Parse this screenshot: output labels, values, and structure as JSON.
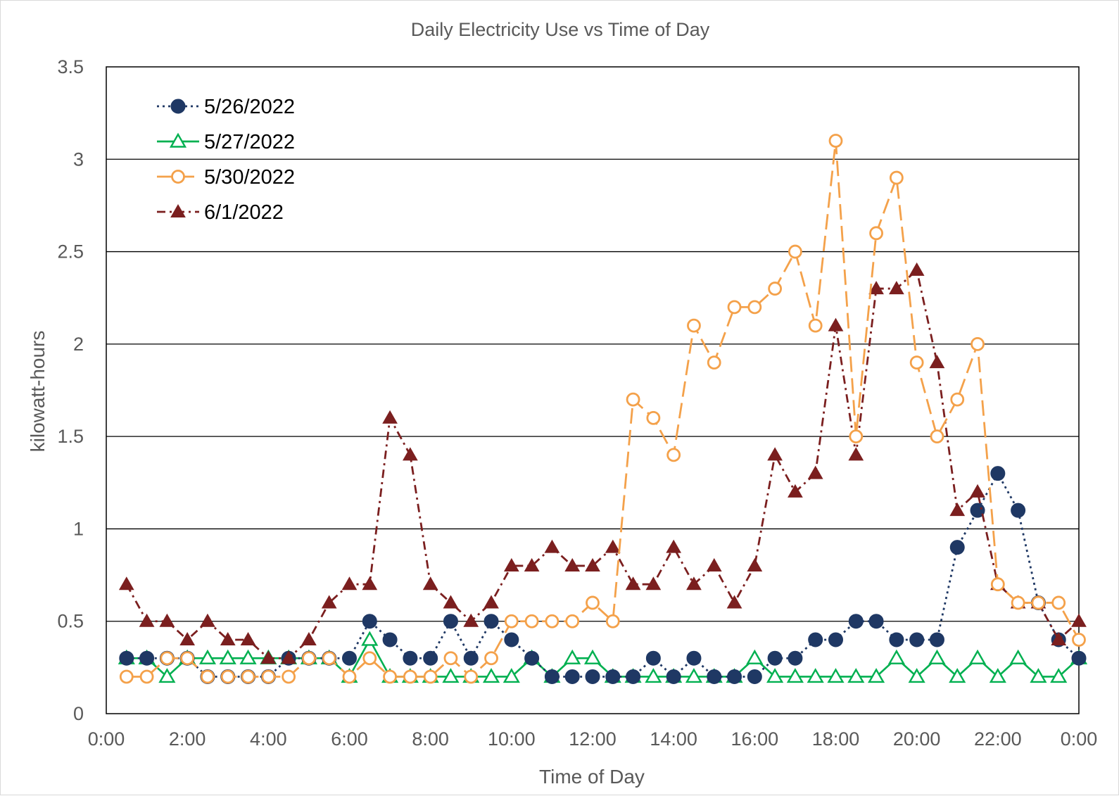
{
  "chart_data": {
    "type": "line",
    "title": "Daily Electricity Use vs Time of Day",
    "xlabel": "Time of Day",
    "ylabel": "kilowatt-hours",
    "xlim": [
      0,
      24
    ],
    "ylim": [
      0,
      3.5
    ],
    "grid": true,
    "legend_position": "top-left",
    "x_ticks": [
      0,
      2,
      4,
      6,
      8,
      10,
      12,
      14,
      16,
      18,
      20,
      22,
      24
    ],
    "x_tick_labels": [
      "0:00",
      "2:00",
      "4:00",
      "6:00",
      "8:00",
      "10:00",
      "12:00",
      "14:00",
      "16:00",
      "18:00",
      "20:00",
      "22:00",
      "0:00"
    ],
    "y_ticks": [
      0,
      0.5,
      1,
      1.5,
      2,
      2.5,
      3,
      3.5
    ],
    "y_tick_labels": [
      "0",
      "0.5",
      "1",
      "1.5",
      "2",
      "2.5",
      "3",
      "3.5"
    ],
    "x": [
      0.5,
      1,
      1.5,
      2,
      2.5,
      3,
      3.5,
      4,
      4.5,
      5,
      5.5,
      6,
      6.5,
      7,
      7.5,
      8,
      8.5,
      9,
      9.5,
      10,
      10.5,
      11,
      11.5,
      12,
      12.5,
      13,
      13.5,
      14,
      14.5,
      15,
      15.5,
      16,
      16.5,
      17,
      17.5,
      18,
      18.5,
      19,
      19.5,
      20,
      20.5,
      21,
      21.5,
      22,
      22.5,
      23,
      23.5,
      24
    ],
    "series": [
      {
        "name": "5/26/2022",
        "color": "#1f3864",
        "marker": "circle-filled",
        "line": "dotted",
        "values": [
          0.3,
          0.3,
          0.3,
          0.3,
          0.2,
          0.2,
          0.2,
          0.2,
          0.3,
          0.3,
          0.3,
          0.3,
          0.5,
          0.4,
          0.3,
          0.3,
          0.5,
          0.3,
          0.5,
          0.4,
          0.3,
          0.2,
          0.2,
          0.2,
          0.2,
          0.2,
          0.3,
          0.2,
          0.3,
          0.2,
          0.2,
          0.2,
          0.3,
          0.3,
          0.4,
          0.4,
          0.5,
          0.5,
          0.4,
          0.4,
          0.4,
          0.9,
          1.1,
          1.3,
          1.1,
          0.6,
          0.4,
          0.3
        ]
      },
      {
        "name": "5/27/2022",
        "color": "#00b050",
        "marker": "triangle-open",
        "line": "solid",
        "values": [
          0.3,
          0.3,
          0.2,
          0.3,
          0.3,
          0.3,
          0.3,
          0.3,
          0.3,
          0.3,
          0.3,
          0.2,
          0.4,
          0.2,
          0.2,
          0.2,
          0.2,
          0.2,
          0.2,
          0.2,
          0.3,
          0.2,
          0.3,
          0.3,
          0.2,
          0.2,
          0.2,
          0.2,
          0.2,
          0.2,
          0.2,
          0.3,
          0.2,
          0.2,
          0.2,
          0.2,
          0.2,
          0.2,
          0.3,
          0.2,
          0.3,
          0.2,
          0.3,
          0.2,
          0.3,
          0.2,
          0.2,
          0.3
        ]
      },
      {
        "name": "5/30/2022",
        "color": "#f4a14a",
        "marker": "circle-open",
        "line": "long-dash",
        "values": [
          0.2,
          0.2,
          0.3,
          0.3,
          0.2,
          0.2,
          0.2,
          0.2,
          0.2,
          0.3,
          0.3,
          0.2,
          0.3,
          0.2,
          0.2,
          0.2,
          0.3,
          0.2,
          0.3,
          0.5,
          0.5,
          0.5,
          0.5,
          0.6,
          0.5,
          1.7,
          1.6,
          1.4,
          2.1,
          1.9,
          2.2,
          2.2,
          2.3,
          2.5,
          2.1,
          3.1,
          1.5,
          2.6,
          2.9,
          1.9,
          1.5,
          1.7,
          2.0,
          0.7,
          0.6,
          0.6,
          0.6,
          0.4
        ]
      },
      {
        "name": "6/1/2022",
        "color": "#7b1f1f",
        "marker": "triangle-filled",
        "line": "dash-dot",
        "values": [
          0.7,
          0.5,
          0.5,
          0.4,
          0.5,
          0.4,
          0.4,
          0.3,
          0.3,
          0.4,
          0.6,
          0.7,
          0.7,
          1.6,
          1.4,
          0.7,
          0.6,
          0.5,
          0.6,
          0.8,
          0.8,
          0.9,
          0.8,
          0.8,
          0.9,
          0.7,
          0.7,
          0.9,
          0.7,
          0.8,
          0.6,
          0.8,
          1.4,
          1.2,
          1.3,
          2.1,
          1.4,
          2.3,
          2.3,
          2.4,
          1.9,
          1.1,
          1.2,
          0.7,
          0.6,
          0.6,
          0.4,
          0.5
        ]
      }
    ]
  }
}
